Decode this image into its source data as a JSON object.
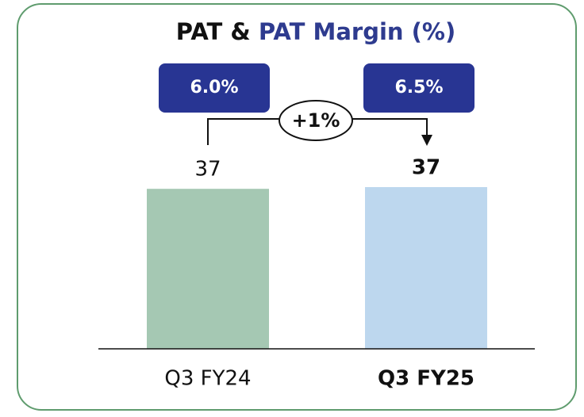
{
  "chart_data": {
    "type": "bar",
    "title": [
      "PAT &",
      "PAT Margin (%)"
    ],
    "categories": [
      "Q3 FY24",
      "Q3 FY25"
    ],
    "values": [
      37,
      37.4
    ],
    "value_labels": [
      "37",
      "37"
    ],
    "colors": [
      "#a5c8b3",
      "#bdd7ee"
    ],
    "margins": [
      6.0,
      6.5
    ],
    "margin_labels": [
      "6.0%",
      "6.5%"
    ],
    "annotation": "+1%"
  }
}
